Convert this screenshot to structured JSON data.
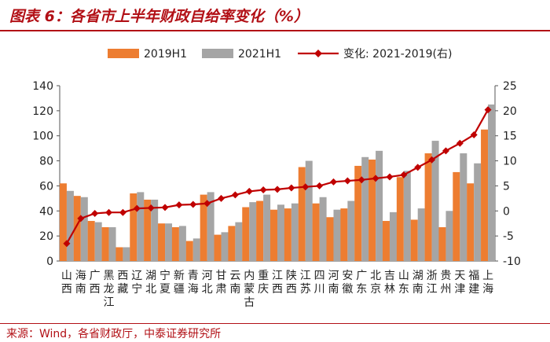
{
  "header": {
    "title": "图表 6：各省市上半年财政自给率变化（%）"
  },
  "footer": {
    "source": "来源：Wind，各省财政厅，中泰证券研究所"
  },
  "colors": {
    "series_2019": "#ED7D31",
    "series_2021": "#A5A5A5",
    "series_change": "#C00000",
    "accent": "#B21016"
  },
  "chart_data": {
    "type": "bar",
    "categories": [
      "山西",
      "海南",
      "广西",
      "黑龙江",
      "西藏",
      "辽宁",
      "湖北",
      "宁夏",
      "新疆",
      "青海",
      "河北",
      "甘肃",
      "云南",
      "内蒙古",
      "重庆",
      "江西",
      "陕西",
      "江苏",
      "四川",
      "河南",
      "安徽",
      "广东",
      "北京",
      "吉林",
      "山东",
      "湖南",
      "浙江",
      "贵州",
      "天津",
      "福建",
      "上海"
    ],
    "series": [
      {
        "name": "2019H1",
        "axis": "left",
        "type": "bar",
        "values": [
          62,
          52,
          32,
          27,
          11,
          54,
          49,
          30,
          27,
          16,
          53,
          21,
          28,
          43,
          48,
          41,
          42,
          75,
          46,
          35,
          42,
          76,
          81,
          32,
          67,
          33,
          86,
          27,
          71,
          62,
          105
        ]
      },
      {
        "name": "2021H1",
        "axis": "left",
        "type": "bar",
        "values": [
          56,
          51,
          31,
          27,
          11,
          55,
          49,
          30,
          28,
          18,
          55,
          23,
          31,
          47,
          53,
          45,
          46,
          80,
          51,
          41,
          48,
          83,
          88,
          39,
          72,
          42,
          96,
          40,
          86,
          78,
          125
        ]
      },
      {
        "name": "变化: 2021-2019(右)",
        "axis": "right",
        "type": "line",
        "values": [
          -6.5,
          -1.5,
          -0.5,
          -0.3,
          -0.3,
          0.5,
          0.6,
          0.7,
          1.2,
          1.3,
          1.5,
          2.5,
          3.2,
          3.9,
          4.2,
          4.3,
          4.6,
          4.8,
          5.0,
          5.8,
          6.0,
          6.2,
          6.5,
          6.8,
          7.2,
          8.7,
          10.2,
          12.0,
          13.5,
          15.2,
          20.2
        ]
      }
    ],
    "y_left": {
      "min": 0,
      "max": 140,
      "ticks": [
        0,
        20,
        40,
        60,
        80,
        100,
        120,
        140
      ]
    },
    "y_right": {
      "min": -10,
      "max": 25,
      "ticks": [
        -10,
        -5,
        0,
        5,
        10,
        15,
        20,
        25
      ]
    },
    "legend_position": "top",
    "grid": false
  }
}
